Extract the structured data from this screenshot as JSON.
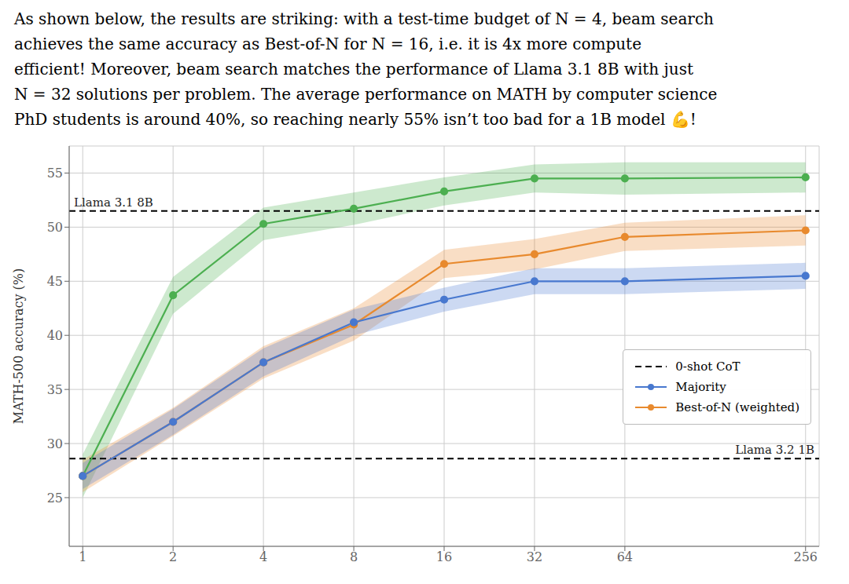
{
  "chart_data": {
    "type": "line",
    "subtitle": [
      "As shown below, the results are striking: with a test-time budget of N = 4, beam search",
      "achieves the same accuracy as Best-of-N for N = 16, i.e. it is 4x more compute",
      "efficient! Moreover, beam search matches the performance of Llama 3.1 8B with just",
      "N = 32 solutions per problem. The average performance on MATH by computer science",
      "PhD students is around 40%, so reaching nearly 55% isn’t too bad for a 1B model 💪!"
    ],
    "x": [
      1,
      2,
      4,
      8,
      16,
      32,
      64,
      256
    ],
    "xlim": [
      0.9013,
      284.05
    ],
    "xticks": [
      1,
      2,
      4,
      8,
      16,
      32,
      64,
      256
    ],
    "log": "x",
    "ylabel": "MATH-500 accuracy (%)",
    "ylim": [
      20.5,
      57.5
    ],
    "yticks": [
      25,
      30,
      35,
      40,
      45,
      50,
      55
    ],
    "grid": true,
    "legend": "lower right",
    "series": [
      {
        "color": "#4CAF50",
        "marker": "circle",
        "values": [
          27.0,
          43.7,
          50.3,
          51.7,
          53.3,
          54.5,
          54.5,
          54.6
        ],
        "low": [
          25.0,
          42.0,
          48.8,
          50.2,
          52.0,
          53.2,
          53.0,
          53.2
        ],
        "high": [
          29.0,
          45.4,
          51.8,
          53.2,
          54.6,
          55.8,
          56.0,
          56.0
        ]
      },
      {
        "name": "Best-of-N (weighted)",
        "color": "#E88A2E",
        "marker": "circle",
        "values": [
          27.0,
          32.0,
          37.5,
          41.0,
          46.6,
          47.5,
          49.1,
          49.7
        ],
        "low": [
          25.5,
          30.7,
          36.0,
          39.5,
          45.3,
          46.1,
          47.8,
          48.3
        ],
        "high": [
          28.5,
          33.3,
          39.0,
          42.5,
          47.9,
          48.9,
          50.4,
          51.1
        ]
      },
      {
        "name": "Majority",
        "color": "#4878CF",
        "marker": "circle",
        "values": [
          27.0,
          32.0,
          37.5,
          41.2,
          43.3,
          45.0,
          45.0,
          45.5
        ],
        "low": [
          25.8,
          30.8,
          36.2,
          40.0,
          42.2,
          43.8,
          43.8,
          44.3
        ],
        "high": [
          28.2,
          33.2,
          38.8,
          42.4,
          44.4,
          46.2,
          46.2,
          46.7
        ]
      }
    ],
    "reference_lines": {
      "name": "0-shot CoT",
      "color": "#000000",
      "line_style": "dashed",
      "lines": [
        {
          "label": "Llama 3.1 8B",
          "value": 51.5
        },
        {
          "label": "Llama 3.2 1B",
          "value": 28.6
        }
      ]
    }
  }
}
